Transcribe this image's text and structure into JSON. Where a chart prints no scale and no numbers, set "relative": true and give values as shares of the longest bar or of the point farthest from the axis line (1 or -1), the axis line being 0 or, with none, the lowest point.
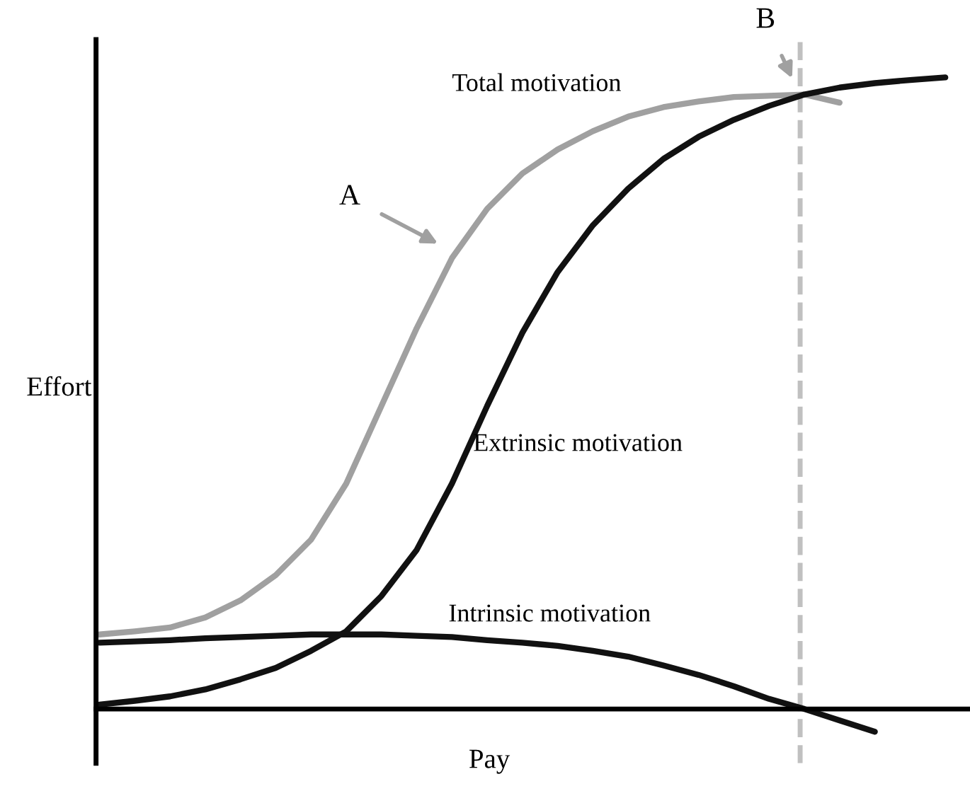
{
  "chart_data": {
    "type": "line",
    "relative": true,
    "xlabel": "Pay",
    "ylabel": "Effort",
    "categories": [
      null,
      null,
      null,
      null,
      null,
      null,
      null,
      null,
      null,
      null,
      null,
      null,
      null,
      null,
      null,
      null,
      null,
      null,
      null,
      null,
      null,
      null,
      null,
      null,
      null
    ],
    "series": [
      {
        "name": "Total motivation",
        "color": "#a0a0a0",
        "values": [
          0.118,
          0.123,
          0.129,
          0.145,
          0.172,
          0.212,
          0.268,
          0.357,
          0.48,
          0.603,
          0.714,
          0.792,
          0.848,
          0.886,
          0.915,
          0.938,
          0.953,
          0.962,
          0.969,
          0.971,
          0.973,
          0.96,
          null,
          null,
          null
        ]
      },
      {
        "name": "Extrinsic motivation",
        "color": "#111111",
        "values": [
          0.007,
          0.013,
          0.02,
          0.031,
          0.047,
          0.065,
          0.092,
          0.123,
          0.179,
          0.252,
          0.357,
          0.48,
          0.596,
          0.692,
          0.766,
          0.824,
          0.871,
          0.906,
          0.933,
          0.955,
          0.973,
          0.984,
          0.991,
          0.996,
          1.0
        ]
      },
      {
        "name": "Intrinsic motivation",
        "color": "#111111",
        "values": [
          0.105,
          0.107,
          0.109,
          0.112,
          0.114,
          0.116,
          0.118,
          0.118,
          0.118,
          0.116,
          0.114,
          0.109,
          0.105,
          0.1,
          0.092,
          0.083,
          0.069,
          0.054,
          0.036,
          0.016,
          0.0,
          -0.018,
          -0.036,
          null,
          null
        ]
      }
    ],
    "annotations": [
      "A",
      "B"
    ],
    "line_style": "solid",
    "marker": "none",
    "legend": false
  }
}
